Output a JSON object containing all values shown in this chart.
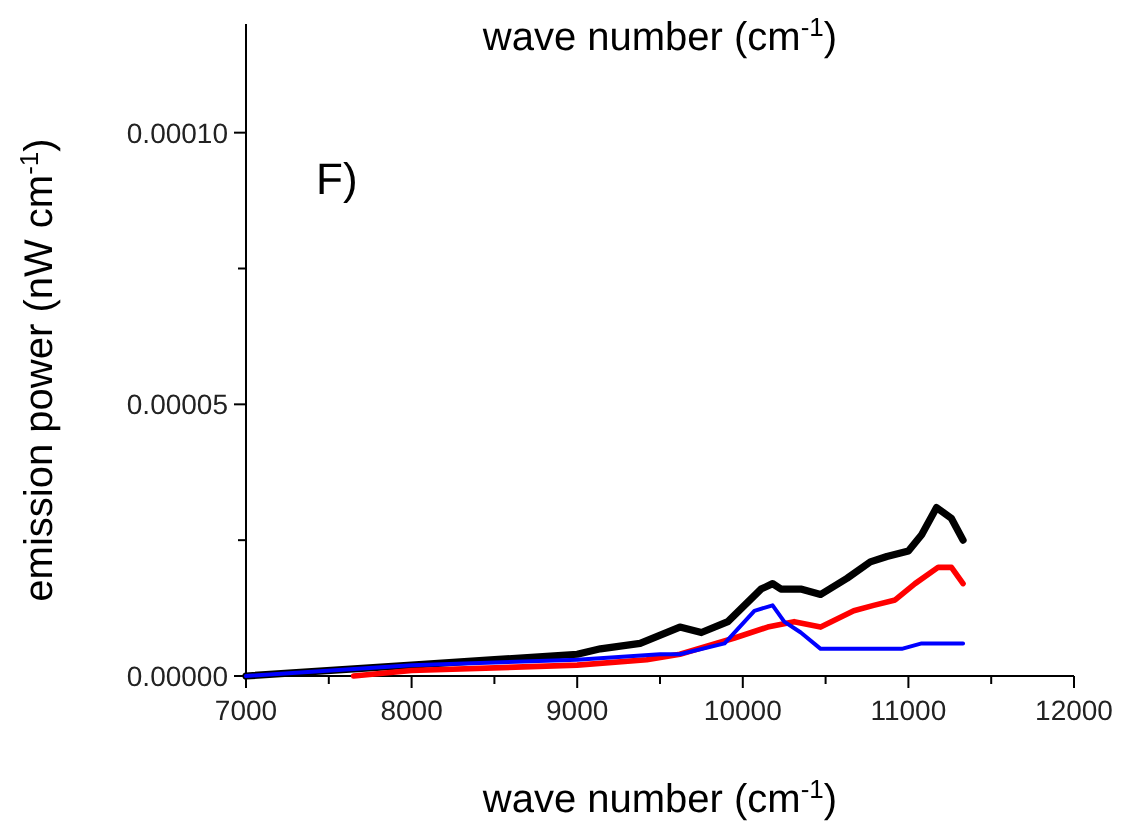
{
  "chart_data": {
    "type": "line",
    "xlabel": "wave number (cm$^{-1}$)",
    "x2label": "wave number (cm$^{-1}$)",
    "ylabel": "emission power (nW cm$^{-1}$)",
    "annotations": [
      "F)"
    ],
    "xlim": [
      7000,
      12000
    ],
    "xticks": [
      7000,
      {
        "value": 7500,
        "label": null
      },
      8000,
      {
        "value": 8500,
        "label": null
      },
      9000,
      {
        "value": 9500,
        "label": null
      },
      10000,
      {
        "value": 10500,
        "label": null
      },
      11000,
      {
        "value": 11500,
        "label": null
      },
      12000
    ],
    "ylim": [
      0,
      0.00012
    ],
    "yticks": [
      {
        "value": 0,
        "label": "0.00000"
      },
      {
        "value": 2.5e-05,
        "label": null
      },
      {
        "value": 5e-05,
        "label": "0.00005"
      },
      {
        "value": 7.5e-05,
        "label": null
      },
      {
        "value": 0.0001,
        "label": "0.00010"
      }
    ],
    "grid": false,
    "marker": "none",
    "line_style": "solid",
    "series": [
      {
        "color": "#000000",
        "x": [
          7000,
          8000,
          8500,
          9000,
          9140,
          9380,
          9620,
          9750,
          9910,
          10110,
          10180,
          10230,
          10350,
          10470,
          10630,
          10770,
          10870,
          11000,
          11080,
          11170,
          11260,
          11330
        ],
        "values": [
          0,
          2e-06,
          3e-06,
          4e-06,
          5e-06,
          6e-06,
          9e-06,
          8e-06,
          1e-05,
          1.6e-05,
          1.7e-05,
          1.6e-05,
          1.6e-05,
          1.5e-05,
          1.8e-05,
          2.1e-05,
          2.2e-05,
          2.3e-05,
          2.6e-05,
          3.1e-05,
          2.9e-05,
          2.5e-05
        ]
      },
      {
        "color": "#ff0000",
        "x": [
          7650,
          8000,
          9000,
          9420,
          9620,
          9950,
          10150,
          10310,
          10470,
          10670,
          10790,
          10920,
          11040,
          11180,
          11260,
          11330
        ],
        "values": [
          0,
          1e-06,
          2e-06,
          3e-06,
          4e-06,
          7e-06,
          9e-06,
          1e-05,
          9e-06,
          1.2e-05,
          1.3e-05,
          1.4e-05,
          1.7e-05,
          2e-05,
          2e-05,
          1.7e-05
        ]
      },
      {
        "color": "#0000ff",
        "x": [
          7000,
          8000,
          9000,
          9500,
          9620,
          9890,
          10070,
          10180,
          10250,
          10350,
          10470,
          10590,
          10750,
          10960,
          11080,
          11180,
          11330
        ],
        "values": [
          0,
          2e-06,
          3e-06,
          4e-06,
          4e-06,
          6e-06,
          1.2e-05,
          1.3e-05,
          1e-05,
          8e-06,
          5e-06,
          5e-06,
          5e-06,
          5e-06,
          6e-06,
          6e-06,
          6e-06
        ]
      }
    ]
  }
}
